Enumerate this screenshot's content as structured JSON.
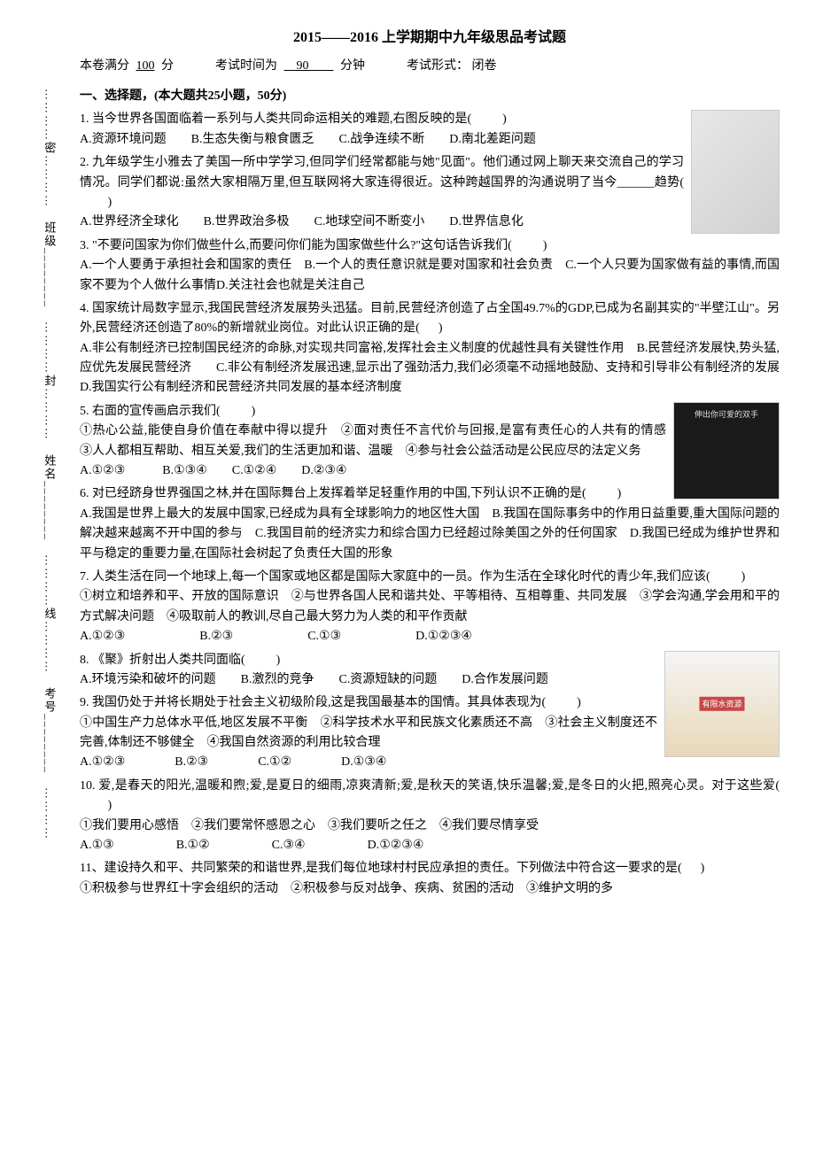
{
  "binding": {
    "labels": [
      "班级",
      "姓名",
      "考号"
    ],
    "markers": [
      "密",
      "封",
      "线"
    ],
    "line_segment": "…………"
  },
  "header": {
    "title": "2015——2016 上学期期中九年级思品考试题",
    "info_prefix": "本卷满分",
    "score": "100",
    "score_suffix": "分",
    "time_prefix": "考试时间为",
    "time": "90",
    "time_suffix": "分钟",
    "form_prefix": "考试形式：",
    "form": "闭卷"
  },
  "section1": {
    "title": "一、选择题，(本大题共25小题，50分)"
  },
  "q1": {
    "text": "1. 当今世界各国面临着一系列与人类共同命运相关的难题,右图反映的是( 　　 )",
    "options": "A.资源环境问题　　B.生态失衡与粮食匮乏　　C.战争连续不断　　D.南北差距问题"
  },
  "q2": {
    "text": "2. 九年级学生小雅去了美国一所中学学习,但同学们经常都能与她\"见面\"。他们通过网上聊天来交流自己的学习情况。同学们都说:虽然大家相隔万里,但互联网将大家连得很近。这种跨越国界的沟通说明了当今______趋势( 　　 )",
    "options": "A.世界经济全球化　　B.世界政治多极　　C.地球空间不断变小　　D.世界信息化"
  },
  "q3": {
    "text": "3. \"不要问国家为你们做些什么,而要问你们能为国家做些什么?\"这句话告诉我们( 　　 )",
    "options": "A.一个人要勇于承担社会和国家的责任　B.一个人的责任意识就是要对国家和社会负责　C.一个人只要为国家做有益的事情,而国家不要为个人做什么事情D.关注社会也就是关注自己"
  },
  "q4": {
    "text": "4. 国家统计局数字显示,我国民营经济发展势头迅猛。目前,民营经济创造了占全国49.7%的GDP,已成为名副其实的\"半壁江山\"。另外,民营经济还创造了80%的新增就业岗位。对此认识正确的是( 　 )",
    "options": "A.非公有制经济已控制国民经济的命脉,对实现共同富裕,发挥社会主义制度的优越性具有关键性作用　B.民营经济发展快,势头猛,应优先发展民营经济　　C.非公有制经济发展迅速,显示出了强劲活力,我们必须毫不动摇地鼓励、支持和引导非公有制经济的发展　D.我国实行公有制经济和民营经济共同发展的基本经济制度"
  },
  "q5": {
    "text": "5. 右面的宣传画启示我们( 　　 )",
    "sub": "①热心公益,能使自身价值在奉献中得以提升　②面对责任不言代价与回报,是富有责任心的人共有的情感　③人人都相互帮助、相互关爱,我们的生活更加和谐、温暖　④参与社会公益活动是公民应尽的法定义务",
    "options": "A.①②③　　　B.①③④　　C.①②④　　D.②③④"
  },
  "q6": {
    "text": "6. 对已经跻身世界强国之林,并在国际舞台上发挥着举足轻重作用的中国,下列认识不正确的是( 　　 )",
    "options": "A.我国是世界上最大的发展中国家,已经成为具有全球影响力的地区性大国　B.我国在国际事务中的作用日益重要,重大国际问题的解决越来越离不开中国的参与　C.我国目前的经济实力和综合国力已经超过除美国之外的任何国家　D.我国已经成为维护世界和平与稳定的重要力量,在国际社会树起了负责任大国的形象"
  },
  "q7": {
    "text": "7. 人类生活在同一个地球上,每一个国家或地区都是国际大家庭中的一员。作为生活在全球化时代的青少年,我们应该( 　　 )",
    "sub": "①树立和培养和平、开放的国际意识　②与世界各国人民和谐共处、平等相待、互相尊重、共同发展　③学会沟通,学会用和平的方式解决问题　④吸取前人的教训,尽自己最大努力为人类的和平作贡献",
    "options": "A.①②③　　　　　　B.②③　　　　　　C.①③　　　　　　D.①②③④"
  },
  "q8": {
    "text": "8. 《聚》折射出人类共同面临( 　　 )",
    "options": "A.环境污染和破坏的问题　　B.激烈的竞争　　C.资源短缺的问题　　D.合作发展问题"
  },
  "q9": {
    "text": "9. 我国仍处于并将长期处于社会主义初级阶段,这是我国最基本的国情。其具体表现为( 　　 )",
    "sub": "①中国生产力总体水平低,地区发展不平衡　②科学技术水平和民族文化素质还不高　③社会主义制度还不完善,体制还不够健全　④我国自然资源的利用比较合理",
    "options": "A.①②③　　　　B.②③　　　　C.①②　　　　D.①③④"
  },
  "q10": {
    "text": "10. 爱,是春天的阳光,温暖和煦;爱,是夏日的细雨,凉爽清新;爱,是秋天的笑语,快乐温馨;爱,是冬日的火把,照亮心灵。对于这些爱( 　　 )",
    "sub": "①我们要用心感悟　②我们要常怀感恩之心　③我们要听之任之　④我们要尽情享受",
    "options": "A.①③　　　　　B.①②　　　　　C.③④　　　　　D.①②③④"
  },
  "q11": {
    "text": "11、建设持久和平、共同繁荣的和谐世界,是我们每位地球村村民应承担的责任。下列做法中符合这一要求的是( 　 )",
    "sub": "①积极参与世界红十字会组织的活动　②积极参与反对战争、疾病、贫困的活动　③维护文明的多"
  }
}
